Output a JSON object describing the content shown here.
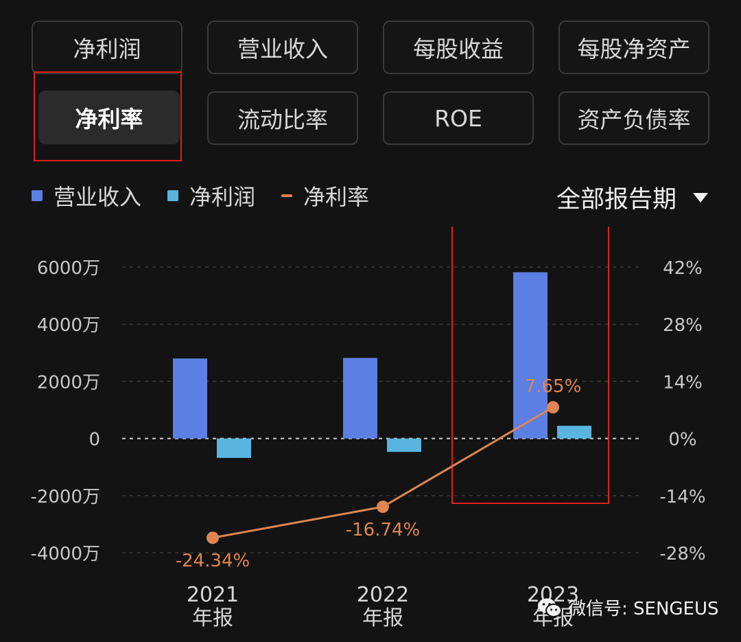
{
  "tabs": [
    {
      "label": "净利润",
      "active": false
    },
    {
      "label": "营业收入",
      "active": false
    },
    {
      "label": "每股收益",
      "active": false
    },
    {
      "label": "每股净资产",
      "active": false
    },
    {
      "label": "净利率",
      "active": true
    },
    {
      "label": "流动比率",
      "active": false
    },
    {
      "label": "ROE",
      "active": false
    },
    {
      "label": "资产负债率",
      "active": false
    }
  ],
  "legend": {
    "revenue": "营业收入",
    "net_profit": "净利润",
    "net_margin": "净利率"
  },
  "period_selector": "全部报告期",
  "watermark": "微信号: SENGEUS",
  "colors": {
    "revenue": "#5b7fe3",
    "net_profit": "#59b4e0",
    "net_margin": "#de8552",
    "highlight": "#e0201b",
    "background": "#131313"
  },
  "chart_data": {
    "type": "bar",
    "categories": [
      "2021\n年报",
      "2022\n年报",
      "2023\n年报"
    ],
    "series": [
      {
        "name": "营业收入",
        "type": "bar",
        "axis": "left",
        "values": [
          2800,
          2820,
          5820
        ]
      },
      {
        "name": "净利润",
        "type": "bar",
        "axis": "left",
        "values": [
          -680,
          -470,
          445
        ]
      },
      {
        "name": "净利率",
        "type": "line",
        "axis": "right",
        "values": [
          -24.34,
          -16.74,
          7.65
        ],
        "labels": [
          "-24.34%",
          "-16.74%",
          "7.65%"
        ]
      }
    ],
    "left_axis": {
      "ticks": [
        6000,
        4000,
        2000,
        0,
        -2000,
        -4000
      ],
      "tick_labels": [
        "6000万",
        "4000万",
        "2000万",
        "0",
        "-2000万",
        "-4000万"
      ],
      "range": [
        -4000,
        6000
      ]
    },
    "right_axis": {
      "ticks": [
        42,
        28,
        14,
        0,
        -14,
        -28
      ],
      "tick_labels": [
        "42%",
        "28%",
        "14%",
        "0%",
        "-14%",
        "-28%"
      ],
      "range": [
        -28,
        42
      ]
    },
    "grid": true,
    "highlighted_category": "2023\n年报"
  }
}
